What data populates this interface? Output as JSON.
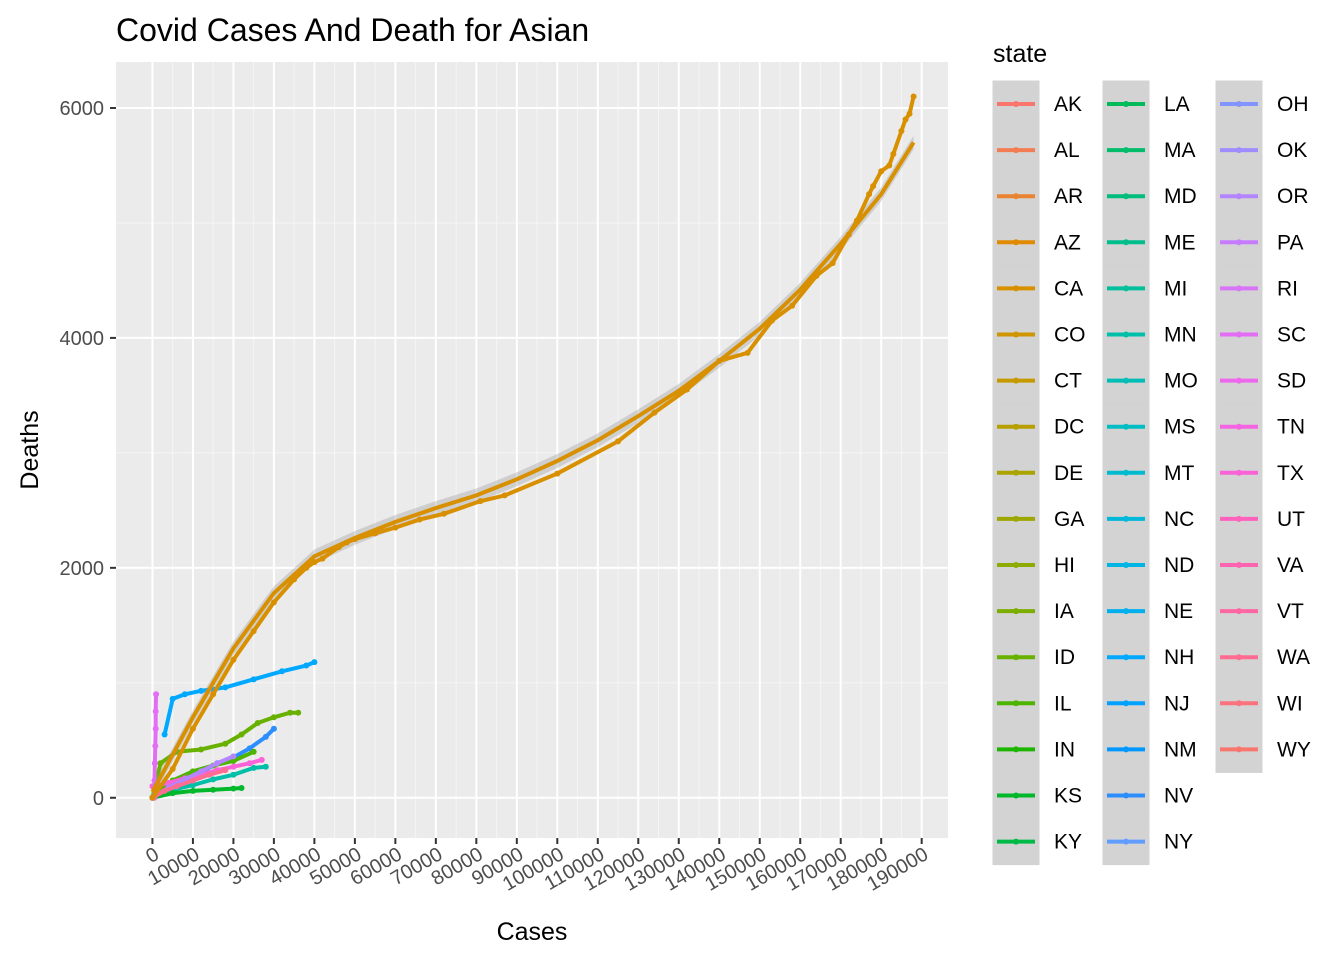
{
  "chart_data": {
    "type": "scatter",
    "title": "Covid Cases And Death for Asian",
    "xlabel": "Cases",
    "ylabel": "Deaths",
    "xlim": [
      -9000,
      196500
    ],
    "ylim": [
      -350,
      6400
    ],
    "x_ticks": [
      "0",
      "10000",
      "20000",
      "30000",
      "40000",
      "50000",
      "60000",
      "70000",
      "80000",
      "90000",
      "100000",
      "110000",
      "120000",
      "130000",
      "140000",
      "150000",
      "160000",
      "170000",
      "180000",
      "190000"
    ],
    "y_ticks": [
      "0",
      "2000",
      "4000",
      "6000"
    ],
    "grid": true,
    "smooth": true,
    "legend_title": "state",
    "legend_placement": "right",
    "legend": [
      {
        "name": "AK",
        "color": "#F8766D"
      },
      {
        "name": "AL",
        "color": "#F27D52"
      },
      {
        "name": "AR",
        "color": "#EA8331"
      },
      {
        "name": "AZ",
        "color": "#E18A00"
      },
      {
        "name": "CA",
        "color": "#D89000"
      },
      {
        "name": "CO",
        "color": "#CE9500"
      },
      {
        "name": "CT",
        "color": "#C49A00"
      },
      {
        "name": "DC",
        "color": "#B79F00"
      },
      {
        "name": "DE",
        "color": "#ABA300"
      },
      {
        "name": "GA",
        "color": "#9DA700"
      },
      {
        "name": "HI",
        "color": "#8EAB00"
      },
      {
        "name": "IA",
        "color": "#7CAE00"
      },
      {
        "name": "ID",
        "color": "#68B100"
      },
      {
        "name": "IL",
        "color": "#4DB400"
      },
      {
        "name": "IN",
        "color": "#1CB600"
      },
      {
        "name": "KS",
        "color": "#00B82A"
      },
      {
        "name": "KY",
        "color": "#00BA45"
      },
      {
        "name": "LA",
        "color": "#00BB59"
      },
      {
        "name": "MA",
        "color": "#00BC6B"
      },
      {
        "name": "MD",
        "color": "#00BD7C"
      },
      {
        "name": "ME",
        "color": "#00BE8C"
      },
      {
        "name": "MI",
        "color": "#00BF9A"
      },
      {
        "name": "MN",
        "color": "#00BFA9"
      },
      {
        "name": "MO",
        "color": "#00BEB6"
      },
      {
        "name": "MS",
        "color": "#00BDC3"
      },
      {
        "name": "MT",
        "color": "#00BBCF"
      },
      {
        "name": "NC",
        "color": "#00B8DA"
      },
      {
        "name": "ND",
        "color": "#00B4E4"
      },
      {
        "name": "NE",
        "color": "#00AFEE"
      },
      {
        "name": "NH",
        "color": "#00A9FF"
      },
      {
        "name": "NJ",
        "color": "#00A1FF"
      },
      {
        "name": "NM",
        "color": "#0098FF"
      },
      {
        "name": "NV",
        "color": "#2C8EFF"
      },
      {
        "name": "NY",
        "color": "#619CFF"
      },
      {
        "name": "OH",
        "color": "#8494FF"
      },
      {
        "name": "OK",
        "color": "#9F8CFF"
      },
      {
        "name": "OR",
        "color": "#B385FF"
      },
      {
        "name": "PA",
        "color": "#C77CFF"
      },
      {
        "name": "RI",
        "color": "#D774F8"
      },
      {
        "name": "SC",
        "color": "#E36EF6"
      },
      {
        "name": "SD",
        "color": "#ED68ED"
      },
      {
        "name": "TN",
        "color": "#F564E3"
      },
      {
        "name": "TX",
        "color": "#FA62D7"
      },
      {
        "name": "UT",
        "color": "#FF62BC"
      },
      {
        "name": "VA",
        "color": "#FF64B0"
      },
      {
        "name": "VT",
        "color": "#FF67A4"
      },
      {
        "name": "WA",
        "color": "#FF6C91"
      },
      {
        "name": "WI",
        "color": "#FB727C"
      },
      {
        "name": "WY",
        "color": "#F8766D"
      }
    ],
    "series": [
      {
        "state": "CA",
        "color": "#D89000",
        "points": [
          [
            0,
            0
          ],
          [
            5000,
            250
          ],
          [
            10000,
            600
          ],
          [
            15000,
            900
          ],
          [
            20000,
            1200
          ],
          [
            25000,
            1450
          ],
          [
            30000,
            1700
          ],
          [
            35000,
            1900
          ],
          [
            38000,
            2000
          ],
          [
            40000,
            2050
          ],
          [
            42000,
            2080
          ],
          [
            46000,
            2180
          ],
          [
            48000,
            2220
          ],
          [
            50000,
            2250
          ],
          [
            55000,
            2300
          ],
          [
            60000,
            2350
          ],
          [
            66000,
            2420
          ],
          [
            72000,
            2470
          ],
          [
            81000,
            2580
          ],
          [
            87000,
            2630
          ],
          [
            100000,
            2820
          ],
          [
            115000,
            3100
          ],
          [
            124000,
            3350
          ],
          [
            132000,
            3550
          ],
          [
            140000,
            3800
          ],
          [
            147000,
            3870
          ],
          [
            153000,
            4150
          ],
          [
            158000,
            4280
          ],
          [
            164000,
            4540
          ],
          [
            168000,
            4650
          ],
          [
            172000,
            4900
          ],
          [
            174000,
            5020
          ],
          [
            177000,
            5250
          ],
          [
            178000,
            5320
          ],
          [
            180000,
            5450
          ],
          [
            182000,
            5500
          ],
          [
            183000,
            5600
          ],
          [
            185000,
            5800
          ],
          [
            186000,
            5900
          ],
          [
            187000,
            5950
          ],
          [
            188000,
            6100
          ]
        ],
        "fit": [
          [
            0,
            50
          ],
          [
            10000,
            700
          ],
          [
            20000,
            1300
          ],
          [
            30000,
            1780
          ],
          [
            40000,
            2100
          ],
          [
            50000,
            2260
          ],
          [
            60000,
            2400
          ],
          [
            70000,
            2520
          ],
          [
            80000,
            2630
          ],
          [
            90000,
            2770
          ],
          [
            100000,
            2930
          ],
          [
            110000,
            3110
          ],
          [
            120000,
            3320
          ],
          [
            130000,
            3540
          ],
          [
            140000,
            3800
          ],
          [
            150000,
            4080
          ],
          [
            160000,
            4420
          ],
          [
            170000,
            4820
          ],
          [
            180000,
            5250
          ],
          [
            188000,
            5700
          ]
        ]
      },
      {
        "state": "NH",
        "color": "#00A9FF",
        "points": [
          [
            3000,
            550
          ],
          [
            5000,
            860
          ],
          [
            8000,
            900
          ],
          [
            12000,
            930
          ],
          [
            18000,
            960
          ],
          [
            25000,
            1030
          ],
          [
            32000,
            1100
          ],
          [
            38000,
            1150
          ],
          [
            40000,
            1180
          ]
        ]
      },
      {
        "state": "ID",
        "color": "#68B100",
        "points": [
          [
            0,
            0
          ],
          [
            2000,
            300
          ],
          [
            6000,
            400
          ],
          [
            12000,
            420
          ],
          [
            18000,
            470
          ],
          [
            22000,
            550
          ],
          [
            26000,
            650
          ],
          [
            30000,
            700
          ],
          [
            34000,
            740
          ],
          [
            36000,
            740
          ]
        ]
      },
      {
        "state": "NV",
        "color": "#2C8EFF",
        "points": [
          [
            0,
            0
          ],
          [
            6000,
            120
          ],
          [
            12000,
            220
          ],
          [
            16000,
            300
          ],
          [
            20000,
            350
          ],
          [
            24000,
            430
          ],
          [
            28000,
            530
          ],
          [
            30000,
            600
          ]
        ]
      },
      {
        "state": "IL",
        "color": "#4DB400",
        "points": [
          [
            0,
            0
          ],
          [
            5000,
            150
          ],
          [
            10000,
            230
          ],
          [
            15000,
            280
          ],
          [
            20000,
            320
          ],
          [
            25000,
            400
          ]
        ]
      },
      {
        "state": "MN",
        "color": "#00BFA9",
        "points": [
          [
            0,
            0
          ],
          [
            5000,
            70
          ],
          [
            10000,
            110
          ],
          [
            15000,
            160
          ],
          [
            20000,
            200
          ],
          [
            25000,
            260
          ],
          [
            28000,
            270
          ]
        ]
      },
      {
        "state": "KS",
        "color": "#00B82A",
        "points": [
          [
            0,
            0
          ],
          [
            5000,
            40
          ],
          [
            10000,
            60
          ],
          [
            15000,
            70
          ],
          [
            20000,
            80
          ],
          [
            22000,
            85
          ]
        ]
      },
      {
        "state": "TX",
        "color": "#FA62D7",
        "points": [
          [
            0,
            100
          ],
          [
            4000,
            130
          ],
          [
            8000,
            170
          ],
          [
            12000,
            200
          ],
          [
            16000,
            240
          ],
          [
            20000,
            270
          ],
          [
            24000,
            300
          ],
          [
            27000,
            330
          ]
        ]
      },
      {
        "state": "SC",
        "color": "#E36EF6",
        "points": [
          [
            500,
            0
          ],
          [
            500,
            150
          ],
          [
            600,
            300
          ],
          [
            700,
            450
          ],
          [
            800,
            600
          ],
          [
            800,
            750
          ],
          [
            900,
            900
          ]
        ]
      },
      {
        "state": "OR",
        "color": "#B385FF",
        "points": [
          [
            0,
            0
          ],
          [
            4000,
            90
          ],
          [
            8000,
            160
          ],
          [
            12000,
            230
          ],
          [
            16000,
            300
          ],
          [
            20000,
            360
          ]
        ]
      },
      {
        "state": "WA",
        "color": "#FF6C91",
        "points": [
          [
            0,
            0
          ],
          [
            3000,
            60
          ],
          [
            6000,
            100
          ],
          [
            10000,
            150
          ],
          [
            14000,
            200
          ],
          [
            18000,
            240
          ]
        ]
      }
    ]
  }
}
